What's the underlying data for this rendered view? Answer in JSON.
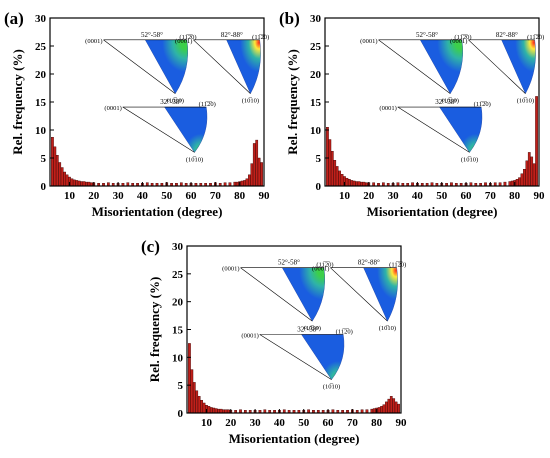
{
  "chart_data": [
    {
      "type": "bar",
      "panel_label": "(a)",
      "xlabel": "Misorientation (degree)",
      "ylabel": "Rel. frequency (%)",
      "xlim": [
        2,
        90
      ],
      "ylim": [
        0,
        30
      ],
      "xticks": [
        "10",
        "20",
        "30",
        "40",
        "50",
        "60",
        "70",
        "80",
        "90"
      ],
      "yticks": [
        "0",
        "5",
        "10",
        "15",
        "20",
        "25",
        "30"
      ],
      "x": [
        3,
        4,
        5,
        6,
        7,
        8,
        9,
        10,
        11,
        12,
        13,
        14,
        15,
        16,
        17,
        18,
        19,
        20,
        22,
        24,
        26,
        28,
        30,
        32,
        34,
        36,
        38,
        40,
        42,
        44,
        46,
        48,
        50,
        52,
        54,
        56,
        58,
        60,
        62,
        64,
        66,
        68,
        70,
        72,
        74,
        76,
        78,
        79,
        80,
        81,
        82,
        83,
        84,
        85,
        86,
        87,
        88,
        89
      ],
      "values": [
        8.7,
        7.0,
        5.5,
        4.2,
        3.3,
        2.5,
        2.0,
        1.6,
        1.3,
        1.1,
        1.0,
        0.9,
        0.8,
        0.8,
        0.7,
        0.7,
        0.6,
        0.6,
        0.5,
        0.5,
        0.6,
        0.5,
        0.5,
        0.5,
        0.6,
        0.5,
        0.5,
        0.5,
        0.6,
        0.5,
        0.5,
        0.5,
        0.6,
        0.5,
        0.5,
        0.6,
        0.5,
        0.5,
        0.5,
        0.5,
        0.5,
        0.5,
        0.6,
        0.5,
        0.6,
        0.6,
        0.7,
        0.7,
        0.8,
        0.9,
        1.0,
        1.3,
        2.0,
        4.0,
        7.6,
        8.2,
        5.0,
        4.2
      ],
      "insets": [
        {
          "range": "52°-58°",
          "top_left": "(0001)",
          "top_right": "(11̅2̅0)",
          "bottom": "(10̅10)"
        },
        {
          "range": "82°-88°",
          "top_left": "(0001)",
          "top_right": "(11̅2̅0)",
          "bottom": "(10̅10)"
        },
        {
          "range": "32°-38°",
          "top_left": "(0001)",
          "top_right": "(11̅2̅0)",
          "bottom": "(10̅10)"
        }
      ]
    },
    {
      "type": "bar",
      "panel_label": "(b)",
      "xlabel": "Misorientation (degree)",
      "ylabel": "Rel. frequency (%)",
      "xlim": [
        2,
        90
      ],
      "ylim": [
        0,
        30
      ],
      "xticks": [
        "10",
        "20",
        "30",
        "40",
        "50",
        "60",
        "70",
        "80",
        "90"
      ],
      "yticks": [
        "0",
        "5",
        "10",
        "15",
        "20",
        "25",
        "30"
      ],
      "x": [
        3,
        4,
        5,
        6,
        7,
        8,
        9,
        10,
        11,
        12,
        13,
        14,
        15,
        16,
        17,
        18,
        19,
        20,
        22,
        24,
        26,
        28,
        30,
        32,
        34,
        36,
        38,
        40,
        42,
        44,
        46,
        48,
        50,
        52,
        54,
        56,
        58,
        60,
        62,
        64,
        66,
        68,
        70,
        72,
        74,
        76,
        78,
        79,
        80,
        81,
        82,
        83,
        84,
        85,
        86,
        87,
        88,
        89
      ],
      "values": [
        10.5,
        8.3,
        6.2,
        4.6,
        3.5,
        2.7,
        2.1,
        1.7,
        1.4,
        1.2,
        1.0,
        0.9,
        0.8,
        0.8,
        0.7,
        0.7,
        0.6,
        0.6,
        0.6,
        0.5,
        0.6,
        0.5,
        0.5,
        0.6,
        0.5,
        0.5,
        0.6,
        0.5,
        0.5,
        0.5,
        0.6,
        0.5,
        0.5,
        0.5,
        0.6,
        0.5,
        0.5,
        0.5,
        0.6,
        0.5,
        0.5,
        0.6,
        0.5,
        0.6,
        0.6,
        0.7,
        0.8,
        0.9,
        1.0,
        1.2,
        1.5,
        2.2,
        3.0,
        4.5,
        6.0,
        5.2,
        4.0,
        16.0
      ],
      "insets": [
        {
          "range": "52°-58°",
          "top_left": "(0001)",
          "top_right": "(11̅2̅0)",
          "bottom": "(10̅10)"
        },
        {
          "range": "82°-88°",
          "top_left": "(0001)",
          "top_right": "(11̅2̅0)",
          "bottom": "(10̅10)"
        },
        {
          "range": "32°-38°",
          "top_left": "(0001)",
          "top_right": "(11̅2̅0)",
          "bottom": "(10̅10)"
        }
      ]
    },
    {
      "type": "bar",
      "panel_label": "(c)",
      "xlabel": "Misorientation (degree)",
      "ylabel": "Rel. frequency (%)",
      "xlim": [
        2,
        90
      ],
      "ylim": [
        0,
        30
      ],
      "xticks": [
        "10",
        "20",
        "30",
        "40",
        "50",
        "60",
        "70",
        "80",
        "90"
      ],
      "yticks": [
        "0",
        "5",
        "10",
        "15",
        "20",
        "25",
        "30"
      ],
      "x": [
        3,
        4,
        5,
        6,
        7,
        8,
        9,
        10,
        11,
        12,
        13,
        14,
        15,
        16,
        17,
        18,
        19,
        20,
        22,
        24,
        26,
        28,
        30,
        32,
        34,
        36,
        38,
        40,
        42,
        44,
        46,
        48,
        50,
        52,
        54,
        56,
        58,
        60,
        62,
        64,
        66,
        68,
        70,
        72,
        74,
        76,
        78,
        79,
        80,
        81,
        82,
        83,
        84,
        85,
        86,
        87,
        88,
        89
      ],
      "values": [
        12.5,
        7.8,
        5.5,
        4.0,
        3.0,
        2.3,
        1.8,
        1.4,
        1.2,
        1.0,
        0.9,
        0.8,
        0.7,
        0.7,
        0.6,
        0.6,
        0.6,
        0.5,
        0.5,
        0.6,
        0.5,
        0.5,
        0.5,
        0.5,
        0.6,
        0.5,
        0.5,
        0.5,
        0.6,
        0.5,
        0.5,
        0.5,
        0.5,
        0.6,
        0.5,
        0.5,
        0.5,
        0.5,
        0.6,
        0.5,
        0.5,
        0.5,
        0.6,
        0.5,
        0.6,
        0.6,
        0.7,
        0.8,
        0.9,
        1.0,
        1.2,
        1.5,
        2.0,
        2.5,
        3.0,
        2.6,
        2.0,
        1.6
      ],
      "insets": [
        {
          "range": "52°-58°",
          "top_left": "(0001)",
          "top_right": "(11̅2̅0)",
          "bottom": "(10̅10)"
        },
        {
          "range": "82°-88°",
          "top_left": "(0001)",
          "top_right": "(11̅2̅0)",
          "bottom": "(10̅10)"
        },
        {
          "range": "32°-38°",
          "top_left": "(0001)",
          "top_right": "(11̅2̅0)",
          "bottom": "(10̅10)"
        }
      ]
    }
  ],
  "colors": {
    "bar_fill": "#c0201a",
    "bar_edge": "#3a0000",
    "axis": "#000000",
    "ipf_blue": "#1a5de0",
    "ipf_green": "#3ccf4a",
    "ipf_yellow": "#ffe93a",
    "ipf_red": "#ff2a1a"
  }
}
